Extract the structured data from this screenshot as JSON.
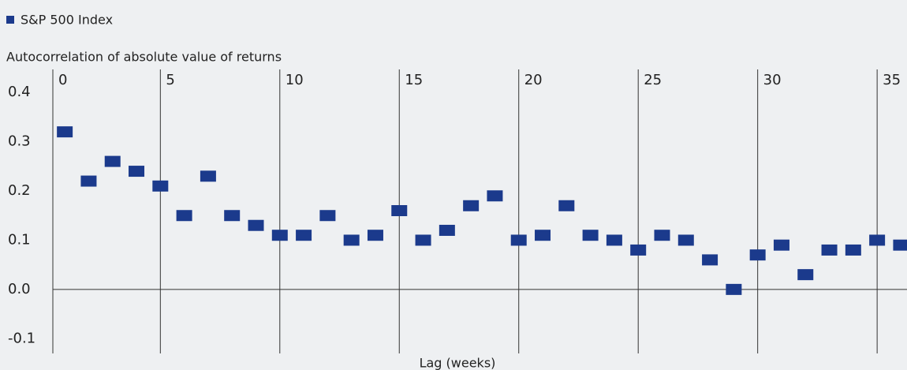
{
  "chart_data": {
    "type": "scatter",
    "legend": "S&P 500 Index",
    "ylabel": "Autocorrelation of absolute value of returns",
    "xlabel": "Lag (weeks)",
    "color": "#1b3a8c",
    "series": [
      {
        "name": "S&P 500 Index",
        "color": "#1b3a8c",
        "x": [
          1,
          2,
          3,
          4,
          5,
          6,
          7,
          8,
          9,
          10,
          11,
          12,
          13,
          14,
          15,
          16,
          17,
          18,
          19,
          20,
          21,
          22,
          23,
          24,
          25,
          26,
          27,
          28,
          29,
          30,
          31,
          32,
          33,
          34,
          35,
          36
        ],
        "values": [
          0.32,
          0.22,
          0.26,
          0.24,
          0.21,
          0.15,
          0.23,
          0.15,
          0.13,
          0.11,
          0.11,
          0.15,
          0.1,
          0.11,
          0.16,
          0.1,
          0.12,
          0.17,
          0.19,
          0.1,
          0.11,
          0.17,
          0.11,
          0.1,
          0.08,
          0.11,
          0.1,
          0.06,
          0.0,
          0.07,
          0.09,
          0.03,
          0.08,
          0.08,
          0.1,
          0.09
        ]
      }
    ],
    "xlim": [
      0.5,
      36.25
    ],
    "xticks": [
      {
        "value": 0.5,
        "label": "0"
      },
      5,
      10,
      15,
      20,
      25,
      30,
      35
    ],
    "ylim": [
      -0.13,
      0.45
    ],
    "yticks": [
      {
        "value": 0.4,
        "label": "0.4"
      },
      {
        "value": 0.3,
        "label": "0.3"
      },
      {
        "value": 0.2,
        "label": "0.2"
      },
      {
        "value": 0.1,
        "label": "0.1"
      },
      {
        "value": 0,
        "label": "0.0"
      },
      {
        "value": -0.1,
        "label": "-0.1"
      }
    ]
  }
}
